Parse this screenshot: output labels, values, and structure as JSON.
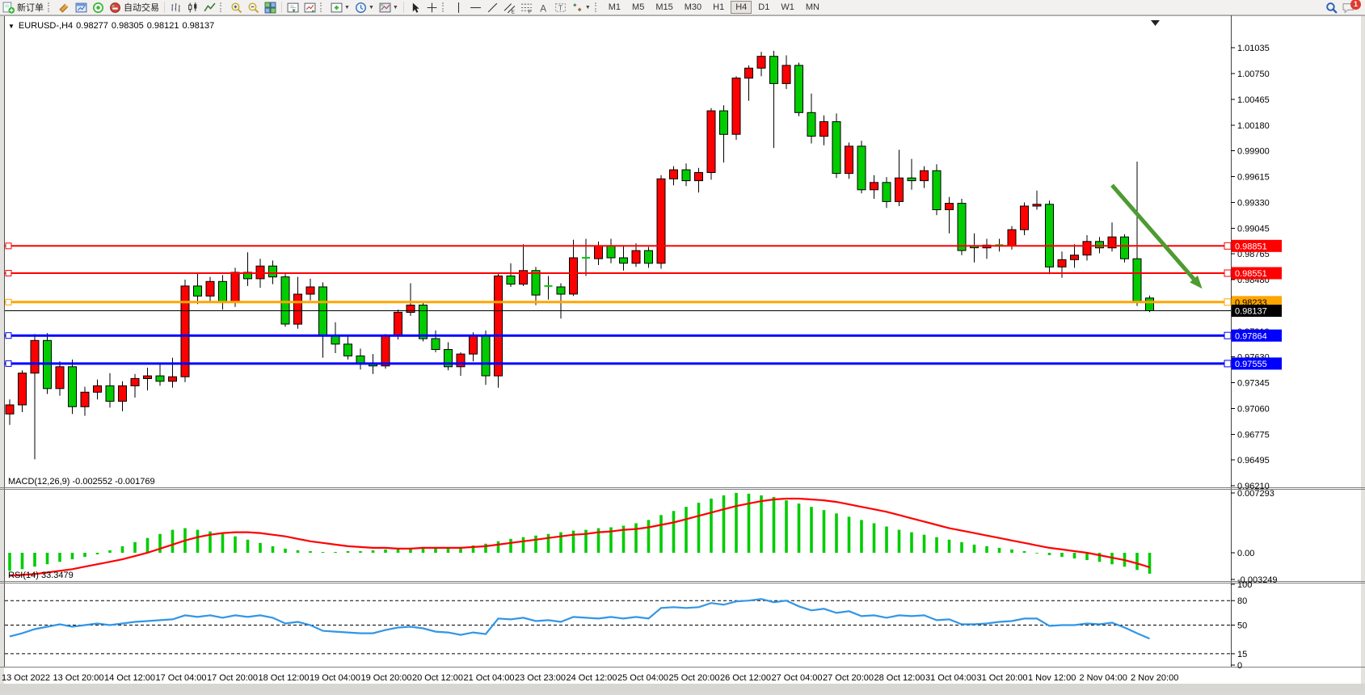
{
  "toolbar": {
    "new_order_label": "新订单",
    "autotrade_label": "自动交易",
    "groups": [
      {
        "items": [
          {
            "name": "new-order-button",
            "icon": "new-order",
            "label": "新订单"
          }
        ]
      },
      {
        "items": [
          {
            "name": "sound-alert-button",
            "icon": "sound"
          },
          {
            "name": "chart-window-button",
            "icon": "chart-window"
          },
          {
            "name": "signal-button",
            "icon": "signal"
          },
          {
            "name": "autotrade-button",
            "icon": "autotrade",
            "label": "自动交易"
          }
        ]
      },
      {
        "items": [
          {
            "name": "bar-chart-button",
            "icon": "chart-bars"
          },
          {
            "name": "candle-chart-button",
            "icon": "chart-candles"
          },
          {
            "name": "line-chart-button",
            "icon": "chart-line"
          }
        ]
      },
      {
        "items": [
          {
            "name": "zoom-in-button",
            "icon": "zoom-in"
          },
          {
            "name": "zoom-out-button",
            "icon": "zoom-out"
          },
          {
            "name": "tile-windows-button",
            "icon": "tile-windows"
          }
        ]
      },
      {
        "items": [
          {
            "name": "chart-shift-button",
            "icon": "chart-shift"
          },
          {
            "name": "auto-scroll-button",
            "icon": "auto-scroll"
          }
        ]
      },
      {
        "items": [
          {
            "name": "indicators-button",
            "icon": "indicators",
            "caret": true
          },
          {
            "name": "periods-button",
            "icon": "periods",
            "caret": true
          },
          {
            "name": "templates-button",
            "icon": "templates",
            "caret": true
          }
        ]
      },
      {
        "items": [
          {
            "name": "cursor-button",
            "icon": "cursor"
          },
          {
            "name": "crosshair-button",
            "icon": "crosshair"
          }
        ]
      },
      {
        "items": [
          {
            "name": "vertical-line-button",
            "icon": "vline"
          },
          {
            "name": "horizontal-line-button",
            "icon": "hline"
          },
          {
            "name": "trendline-button",
            "icon": "trendline"
          },
          {
            "name": "channel-button",
            "icon": "channel"
          },
          {
            "name": "fibonacci-button",
            "icon": "fibonacci"
          },
          {
            "name": "text-button",
            "icon": "text"
          },
          {
            "name": "text-label-button",
            "icon": "text-label"
          },
          {
            "name": "arrows-button",
            "icon": "arrows",
            "caret": true
          }
        ]
      }
    ],
    "timeframes": [
      "M1",
      "M5",
      "M15",
      "M30",
      "H1",
      "H4",
      "D1",
      "W1",
      "MN"
    ],
    "active_timeframe": "H4",
    "chat_badge": "1"
  },
  "chart": {
    "title": {
      "collapse": "▼",
      "symbol": "EURUSD-,H4",
      "open": "0.98277",
      "high": "0.98305",
      "low": "0.98121",
      "close": "0.98137"
    },
    "price_axis": {
      "ticks": [
        "1.01035",
        "1.00750",
        "1.00465",
        "1.00180",
        "0.99900",
        "0.99615",
        "0.99330",
        "0.99045",
        "0.98765",
        "0.98480",
        "0.97910",
        "0.97630",
        "0.97345",
        "0.97060",
        "0.96775",
        "0.96495",
        "0.96210"
      ],
      "tick_values": [
        1.01035,
        1.0075,
        1.00465,
        1.0018,
        0.999,
        0.99615,
        0.9933,
        0.99045,
        0.98765,
        0.9848,
        0.9791,
        0.9763,
        0.97345,
        0.9706,
        0.96775,
        0.96495,
        0.9621
      ],
      "current_price": "0.98137",
      "current_price_value": 0.98137
    },
    "lines": [
      {
        "label": "0.98851",
        "price": 0.98851,
        "color": "#ff0000",
        "text_color": "#ffffff",
        "width": 2
      },
      {
        "label": "0.98551",
        "price": 0.98551,
        "color": "#ff0000",
        "text_color": "#ffffff",
        "width": 2
      },
      {
        "label": "0.98233",
        "price": 0.98233,
        "color": "#ffa500",
        "text_color": "#000000",
        "width": 3
      },
      {
        "label": "0.97864",
        "price": 0.97864,
        "color": "#0000ff",
        "text_color": "#ffffff",
        "width": 3
      },
      {
        "label": "0.97555",
        "price": 0.97555,
        "color": "#0000ff",
        "text_color": "#ffffff",
        "width": 3
      }
    ],
    "time_axis": [
      "13 Oct 2022",
      "13 Oct 20:00",
      "14 Oct 12:00",
      "17 Oct 04:00",
      "17 Oct 20:00",
      "18 Oct 12:00",
      "19 Oct 04:00",
      "19 Oct 20:00",
      "20 Oct 12:00",
      "21 Oct 04:00",
      "23 Oct 23:00",
      "24 Oct 12:00",
      "25 Oct 04:00",
      "25 Oct 20:00",
      "26 Oct 12:00",
      "27 Oct 04:00",
      "27 Oct 20:00",
      "28 Oct 12:00",
      "31 Oct 04:00",
      "31 Oct 20:00",
      "1 Nov 12:00",
      "2 Nov 04:00",
      "2 Nov 20:00"
    ],
    "macd": {
      "label": "MACD(12,26,9)",
      "value_main": "-0.002552",
      "value_signal": "-0.001769",
      "ticks": [
        "0.007293",
        "0.00",
        "-0.003249"
      ],
      "tick_values": [
        0.007293,
        0.0,
        -0.003249
      ]
    },
    "rsi": {
      "label": "RSI(14)",
      "value": "33.3479",
      "ticks": [
        "100",
        "80",
        "50",
        "15",
        "0"
      ],
      "tick_values": [
        100,
        80,
        50,
        15,
        0
      ],
      "levels": [
        80,
        50,
        15
      ]
    }
  },
  "chart_data": {
    "type": "candlestick",
    "symbol": "EURUSD-",
    "timeframe": "H4",
    "title": "EURUSD-,H4 0.98277 0.98305 0.98121 0.98137",
    "y_axis": {
      "top": 1.01035,
      "bottom": 0.9621
    },
    "colors": {
      "up": "#ff0000",
      "down": "#00cc00",
      "wick": "#000000",
      "macd_hist": "#00cc00",
      "macd_signal": "#ff0000",
      "rsi_line": "#3296e6",
      "arrow": "#4e9b31"
    },
    "candles": [
      [
        0.97,
        0.9716,
        0.9688,
        0.971
      ],
      [
        0.971,
        0.9748,
        0.9702,
        0.9745
      ],
      [
        0.9745,
        0.9788,
        0.965,
        0.9781
      ],
      [
        0.9781,
        0.9789,
        0.9722,
        0.9728
      ],
      [
        0.9728,
        0.9758,
        0.972,
        0.9752
      ],
      [
        0.9752,
        0.976,
        0.97,
        0.9708
      ],
      [
        0.9708,
        0.973,
        0.9698,
        0.9724
      ],
      [
        0.9724,
        0.9738,
        0.9716,
        0.9731
      ],
      [
        0.9731,
        0.9745,
        0.9707,
        0.9714
      ],
      [
        0.9714,
        0.9736,
        0.9703,
        0.9731
      ],
      [
        0.9731,
        0.9744,
        0.9718,
        0.9739
      ],
      [
        0.9739,
        0.9751,
        0.9726,
        0.9742
      ],
      [
        0.9742,
        0.9756,
        0.9731,
        0.9736
      ],
      [
        0.9736,
        0.9762,
        0.9729,
        0.9741
      ],
      [
        0.9741,
        0.9848,
        0.9735,
        0.9841
      ],
      [
        0.9841,
        0.9856,
        0.9821,
        0.983
      ],
      [
        0.983,
        0.9851,
        0.9824,
        0.9846
      ],
      [
        0.9846,
        0.9853,
        0.9815,
        0.9823
      ],
      [
        0.9823,
        0.9861,
        0.9818,
        0.9856
      ],
      [
        0.9856,
        0.9878,
        0.9841,
        0.9849
      ],
      [
        0.9849,
        0.9871,
        0.9839,
        0.9863
      ],
      [
        0.9863,
        0.9869,
        0.9843,
        0.9851
      ],
      [
        0.9851,
        0.9856,
        0.9796,
        0.9799
      ],
      [
        0.9799,
        0.9851,
        0.9794,
        0.9832
      ],
      [
        0.9832,
        0.9849,
        0.9825,
        0.984
      ],
      [
        0.984,
        0.9845,
        0.9762,
        0.9786
      ],
      [
        0.9786,
        0.9801,
        0.9767,
        0.9777
      ],
      [
        0.9777,
        0.9786,
        0.976,
        0.9764
      ],
      [
        0.9764,
        0.9772,
        0.9749,
        0.9756
      ],
      [
        0.9756,
        0.9766,
        0.9744,
        0.9753
      ],
      [
        0.9753,
        0.9788,
        0.975,
        0.9786
      ],
      [
        0.9786,
        0.9815,
        0.9782,
        0.9812
      ],
      [
        0.9812,
        0.9844,
        0.9808,
        0.982
      ],
      [
        0.982,
        0.9824,
        0.978,
        0.9783
      ],
      [
        0.9783,
        0.9792,
        0.9768,
        0.9771
      ],
      [
        0.9771,
        0.9779,
        0.9748,
        0.9752
      ],
      [
        0.9752,
        0.9768,
        0.9742,
        0.9766
      ],
      [
        0.9766,
        0.979,
        0.9758,
        0.9787
      ],
      [
        0.9787,
        0.9792,
        0.9732,
        0.9742
      ],
      [
        0.9742,
        0.9855,
        0.9729,
        0.9852
      ],
      [
        0.9852,
        0.9866,
        0.984,
        0.9843
      ],
      [
        0.9843,
        0.9887,
        0.9841,
        0.9858
      ],
      [
        0.9858,
        0.9862,
        0.982,
        0.9831
      ],
      [
        0.9841,
        0.9852,
        0.9826,
        0.984
      ],
      [
        0.984,
        0.9844,
        0.9805,
        0.9832
      ],
      [
        0.9832,
        0.9892,
        0.983,
        0.9872
      ],
      [
        0.9872,
        0.9893,
        0.9852,
        0.9871
      ],
      [
        0.9871,
        0.989,
        0.9864,
        0.9885
      ],
      [
        0.9885,
        0.9893,
        0.9866,
        0.9872
      ],
      [
        0.9872,
        0.9886,
        0.9858,
        0.9866
      ],
      [
        0.9866,
        0.9888,
        0.9862,
        0.988
      ],
      [
        0.988,
        0.9884,
        0.9861,
        0.9866
      ],
      [
        0.9866,
        0.9963,
        0.986,
        0.9959
      ],
      [
        0.9959,
        0.9973,
        0.9952,
        0.9969
      ],
      [
        0.9969,
        0.9976,
        0.9951,
        0.9957
      ],
      [
        0.9957,
        0.9971,
        0.9944,
        0.9966
      ],
      [
        0.9966,
        1.0037,
        0.9958,
        1.0034
      ],
      [
        1.0034,
        1.004,
        0.9977,
        1.0008
      ],
      [
        1.0008,
        1.0072,
        1.0002,
        1.007
      ],
      [
        1.007,
        1.0084,
        1.0045,
        1.0081
      ],
      [
        1.0081,
        1.0099,
        1.0072,
        1.0094
      ],
      [
        1.0094,
        1.01,
        0.9993,
        1.0064
      ],
      [
        1.0064,
        1.0095,
        1.0058,
        1.0084
      ],
      [
        1.0084,
        1.0087,
        1.0028,
        1.0032
      ],
      [
        1.0032,
        1.0053,
        0.9998,
        1.0006
      ],
      [
        1.0006,
        1.0029,
        0.9996,
        1.0022
      ],
      [
        1.0022,
        1.0031,
        0.996,
        0.9965
      ],
      [
        0.9965,
        0.9999,
        0.9959,
        0.9995
      ],
      [
        0.9995,
        1.0001,
        0.9943,
        0.9947
      ],
      [
        0.9947,
        0.9963,
        0.9937,
        0.9955
      ],
      [
        0.9955,
        0.9961,
        0.9927,
        0.9934
      ],
      [
        0.9934,
        0.9991,
        0.9929,
        0.996
      ],
      [
        0.996,
        0.9981,
        0.9947,
        0.9957
      ],
      [
        0.9957,
        0.9973,
        0.9949,
        0.9968
      ],
      [
        0.9968,
        0.9975,
        0.9919,
        0.9925
      ],
      [
        0.9925,
        0.9939,
        0.9899,
        0.9932
      ],
      [
        0.9932,
        0.9937,
        0.9875,
        0.988
      ],
      [
        0.9885,
        0.9899,
        0.9867,
        0.9883
      ],
      [
        0.9883,
        0.9893,
        0.9871,
        0.9886
      ],
      [
        0.9886,
        0.9893,
        0.9879,
        0.9885
      ],
      [
        0.9885,
        0.9907,
        0.9881,
        0.9903
      ],
      [
        0.9903,
        0.9933,
        0.9897,
        0.9929
      ],
      [
        0.9929,
        0.9946,
        0.9925,
        0.9931
      ],
      [
        0.9931,
        0.9935,
        0.9854,
        0.9862
      ],
      [
        0.9862,
        0.9879,
        0.985,
        0.987
      ],
      [
        0.987,
        0.9887,
        0.9861,
        0.9875
      ],
      [
        0.9875,
        0.9897,
        0.9869,
        0.989
      ],
      [
        0.989,
        0.9895,
        0.9877,
        0.9883
      ],
      [
        0.9883,
        0.9911,
        0.9879,
        0.9895
      ],
      [
        0.9895,
        0.9898,
        0.9867,
        0.9871
      ],
      [
        0.9871,
        0.9978,
        0.9819,
        0.9823
      ],
      [
        0.98277,
        0.98305,
        0.98121,
        0.98137
      ]
    ],
    "indicators": {
      "macd": {
        "params": [
          12,
          26,
          9
        ],
        "last_main": -0.002552,
        "last_signal": -0.001769,
        "range": [
          -0.003249,
          0.007293
        ],
        "hist": [
          -0.0022,
          -0.002,
          -0.0017,
          -0.0014,
          -0.0011,
          -0.0008,
          -0.0005,
          -0.0002,
          0.0003,
          0.0008,
          0.0013,
          0.0018,
          0.0023,
          0.0028,
          0.003,
          0.0028,
          0.0026,
          0.0023,
          0.002,
          0.0016,
          0.0012,
          0.0008,
          0.0005,
          0.0003,
          0.0002,
          0.0001,
          0.0001,
          0.0002,
          0.0002,
          0.0003,
          0.0004,
          0.0005,
          0.0006,
          0.0007,
          0.0006,
          0.0006,
          0.0007,
          0.0009,
          0.0011,
          0.0014,
          0.0017,
          0.0019,
          0.0021,
          0.0023,
          0.0025,
          0.0027,
          0.0028,
          0.003,
          0.0031,
          0.0033,
          0.0036,
          0.004,
          0.0046,
          0.0051,
          0.0056,
          0.0061,
          0.0066,
          0.007,
          0.0073,
          0.0072,
          0.007,
          0.0068,
          0.0064,
          0.006,
          0.0056,
          0.0052,
          0.0048,
          0.0044,
          0.004,
          0.0036,
          0.0032,
          0.0028,
          0.0025,
          0.0022,
          0.0019,
          0.0016,
          0.0013,
          0.001,
          0.0008,
          0.0006,
          0.0004,
          0.0002,
          0.0,
          -0.0003,
          -0.0005,
          -0.0007,
          -0.0009,
          -0.0011,
          -0.0014,
          -0.0017,
          -0.0021,
          -0.002552
        ],
        "signal": [
          -0.0028,
          -0.0027,
          -0.0026,
          -0.0024,
          -0.0022,
          -0.002,
          -0.0017,
          -0.0014,
          -0.0011,
          -0.0008,
          -0.0004,
          0.0,
          0.0005,
          0.001,
          0.0015,
          0.0019,
          0.0022,
          0.0024,
          0.0025,
          0.0025,
          0.0024,
          0.0022,
          0.002,
          0.0017,
          0.0014,
          0.0012,
          0.001,
          0.0008,
          0.0007,
          0.0006,
          0.0006,
          0.0005,
          0.0005,
          0.0006,
          0.0006,
          0.0006,
          0.0006,
          0.0007,
          0.0008,
          0.001,
          0.0012,
          0.0014,
          0.0016,
          0.0018,
          0.002,
          0.0022,
          0.0023,
          0.0025,
          0.0026,
          0.0028,
          0.0029,
          0.0031,
          0.0034,
          0.0037,
          0.0041,
          0.0045,
          0.0049,
          0.0053,
          0.0057,
          0.006,
          0.0063,
          0.0065,
          0.0066,
          0.0066,
          0.0065,
          0.0064,
          0.0062,
          0.0059,
          0.0056,
          0.0053,
          0.005,
          0.0046,
          0.0042,
          0.0038,
          0.0034,
          0.003,
          0.0027,
          0.0024,
          0.0021,
          0.0018,
          0.0015,
          0.0012,
          0.0009,
          0.0006,
          0.0004,
          0.0002,
          0.0,
          -0.0003,
          -0.0006,
          -0.0009,
          -0.0013,
          -0.001769
        ]
      },
      "rsi": {
        "period": 14,
        "last": 33.3479,
        "range": [
          0,
          100
        ],
        "levels": [
          80,
          50,
          15
        ],
        "values": [
          36,
          40,
          45,
          48,
          51,
          48,
          50,
          52,
          50,
          52,
          54,
          55,
          56,
          57,
          62,
          60,
          62,
          59,
          62,
          60,
          62,
          59,
          52,
          54,
          50,
          43,
          42,
          41,
          40,
          40,
          44,
          47,
          48,
          46,
          42,
          41,
          38,
          41,
          39,
          58,
          57,
          59,
          55,
          56,
          54,
          60,
          59,
          58,
          60,
          58,
          60,
          58,
          71,
          72,
          71,
          72,
          77,
          75,
          79,
          80,
          82,
          78,
          80,
          73,
          68,
          70,
          65,
          67,
          61,
          62,
          59,
          62,
          61,
          62,
          56,
          57,
          51,
          51,
          52,
          54,
          55,
          58,
          58,
          49,
          50,
          50,
          52,
          51,
          53,
          47,
          40,
          33.3479
        ]
      }
    },
    "annotations": [
      {
        "type": "arrow",
        "name": "downtrend-arrow",
        "color": "#4e9b31",
        "start": {
          "bar": 88,
          "price": 0.9952
        },
        "end": {
          "bar": 95.2,
          "price": 0.9838
        }
      }
    ]
  }
}
